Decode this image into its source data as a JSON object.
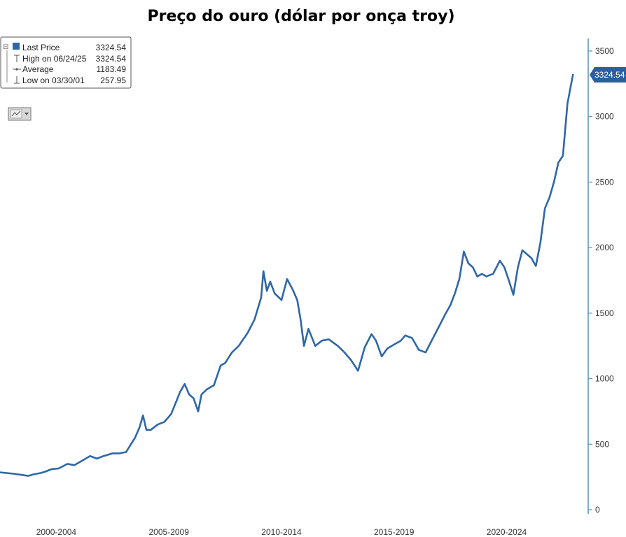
{
  "colors": {
    "line": "#2e67a8",
    "axis": "#5a8fc4",
    "tag": "#2a5fa0",
    "legend_border": "#555555"
  },
  "legend": {
    "rows": [
      {
        "icon": "last-price-square-icon",
        "label": "Last Price",
        "value": "3324.54"
      },
      {
        "icon": "high-marker-icon",
        "label": "High on 06/24/25",
        "value": "3324.54"
      },
      {
        "icon": "average-marker-icon",
        "label": "Average",
        "value": "1183.49"
      },
      {
        "icon": "low-marker-icon",
        "label": "Low on 03/30/01",
        "value": "257.95"
      }
    ],
    "collapse_glyph": "⊟"
  },
  "chart_type_button": {
    "icon": "line-chart-icon",
    "dropdown_icon": "dropdown-arrow-icon"
  },
  "chart_data": {
    "type": "line",
    "title": "Preço do ouro (dólar por onça troy)",
    "xlabel": "",
    "ylabel": "",
    "x_tick_labels": [
      "2000-2004",
      "2005-2009",
      "2010-2014",
      "2015-2019",
      "2020-2024"
    ],
    "x_tick_years": [
      2002.5,
      2007.5,
      2012.5,
      2017.5,
      2022.5
    ],
    "xlim": [
      2000.0,
      2025.5
    ],
    "ylim": [
      0,
      3600
    ],
    "y_ticks": [
      0,
      500,
      1000,
      1500,
      2000,
      2500,
      3000,
      3500
    ],
    "last_value_label": "3324.54",
    "grid": false,
    "series": [
      {
        "x": [
          2000.0,
          2000.3,
          2000.6,
          2001.0,
          2001.25,
          2001.5,
          2001.8,
          2002.0,
          2002.3,
          2002.6,
          2003.0,
          2003.3,
          2003.6,
          2004.0,
          2004.3,
          2004.6,
          2005.0,
          2005.3,
          2005.6,
          2006.0,
          2006.2,
          2006.35,
          2006.5,
          2006.7,
          2007.0,
          2007.3,
          2007.6,
          2008.0,
          2008.2,
          2008.4,
          2008.6,
          2008.8,
          2008.95,
          2009.2,
          2009.5,
          2009.8,
          2010.0,
          2010.3,
          2010.6,
          2011.0,
          2011.3,
          2011.6,
          2011.7,
          2011.85,
          2012.0,
          2012.2,
          2012.5,
          2012.75,
          2013.0,
          2013.2,
          2013.35,
          2013.5,
          2013.7,
          2014.0,
          2014.3,
          2014.6,
          2015.0,
          2015.3,
          2015.6,
          2015.9,
          2016.2,
          2016.5,
          2016.7,
          2016.95,
          2017.2,
          2017.5,
          2017.8,
          2018.0,
          2018.3,
          2018.6,
          2018.9,
          2019.2,
          2019.5,
          2019.8,
          2020.0,
          2020.2,
          2020.4,
          2020.6,
          2020.8,
          2021.0,
          2021.2,
          2021.4,
          2021.6,
          2021.9,
          2022.2,
          2022.4,
          2022.6,
          2022.8,
          2023.0,
          2023.2,
          2023.4,
          2023.6,
          2023.8,
          2024.0,
          2024.2,
          2024.4,
          2024.6,
          2024.8,
          2025.0,
          2025.2,
          2025.45
        ],
        "y": [
          285,
          280,
          275,
          265,
          258,
          270,
          280,
          290,
          310,
          315,
          350,
          340,
          370,
          410,
          390,
          410,
          430,
          430,
          440,
          550,
          630,
          720,
          610,
          610,
          650,
          670,
          730,
          900,
          960,
          880,
          850,
          750,
          880,
          920,
          950,
          1100,
          1120,
          1200,
          1250,
          1350,
          1450,
          1620,
          1820,
          1670,
          1740,
          1650,
          1600,
          1760,
          1680,
          1600,
          1450,
          1250,
          1380,
          1250,
          1290,
          1300,
          1250,
          1200,
          1140,
          1060,
          1240,
          1340,
          1290,
          1170,
          1230,
          1260,
          1290,
          1330,
          1310,
          1220,
          1200,
          1300,
          1400,
          1500,
          1560,
          1650,
          1760,
          1970,
          1880,
          1850,
          1780,
          1800,
          1780,
          1800,
          1900,
          1850,
          1750,
          1640,
          1850,
          1980,
          1950,
          1920,
          1860,
          2040,
          2300,
          2380,
          2500,
          2650,
          2700,
          3100,
          3324.54
        ]
      }
    ]
  }
}
